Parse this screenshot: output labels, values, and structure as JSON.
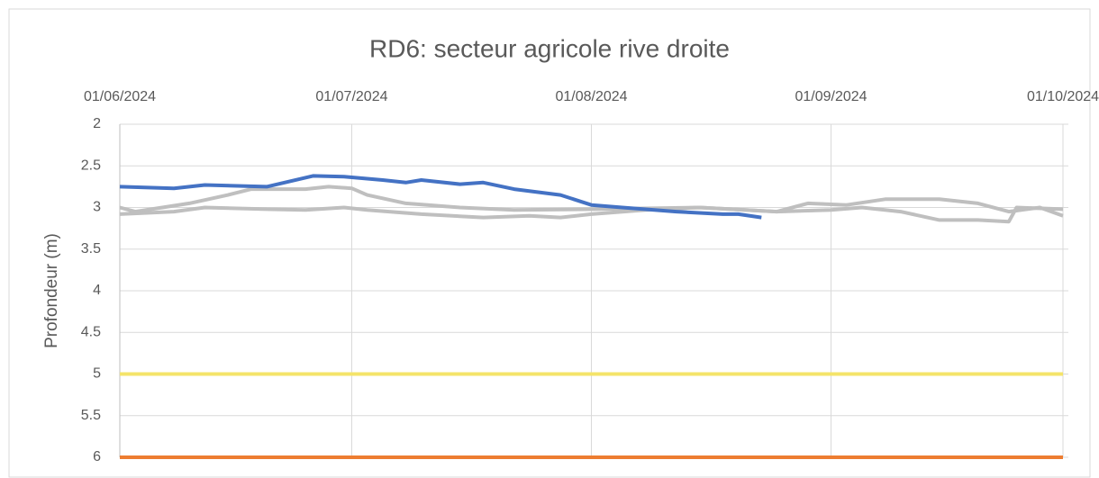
{
  "chart_data": {
    "type": "line",
    "title": "RD6: secteur agricole rive droite",
    "y_label": "Profondeur (m)",
    "ylim": [
      2,
      6
    ],
    "y_inverted": true,
    "yticks": [
      2,
      2.5,
      3,
      3.5,
      4,
      4.5,
      5,
      5.5,
      6
    ],
    "xlim": [
      "2024-06-01",
      "2024-10-01"
    ],
    "xticks": [
      {
        "value": "2024-06-01",
        "label": "01/06/2024"
      },
      {
        "value": "2024-07-01",
        "label": "01/07/2024"
      },
      {
        "value": "2024-08-01",
        "label": "01/08/2024"
      },
      {
        "value": "2024-09-01",
        "label": "01/09/2024"
      },
      {
        "value": "2024-10-01",
        "label": "01/10/2024"
      }
    ],
    "grid": true,
    "series": [
      {
        "color": "#bfbfbf",
        "x": [
          "2024-06-01",
          "2024-06-03",
          "2024-06-10",
          "2024-06-15",
          "2024-06-18",
          "2024-06-25",
          "2024-06-28",
          "2024-07-01",
          "2024-07-03",
          "2024-07-08",
          "2024-07-15",
          "2024-07-22",
          "2024-08-01",
          "2024-08-15",
          "2024-08-25",
          "2024-09-01",
          "2024-09-05",
          "2024-09-10",
          "2024-09-15",
          "2024-09-20",
          "2024-09-24",
          "2024-09-25",
          "2024-10-01"
        ],
        "values": [
          3.0,
          3.05,
          2.95,
          2.85,
          2.78,
          2.78,
          2.75,
          2.77,
          2.85,
          2.95,
          3.0,
          3.03,
          3.02,
          3.0,
          3.05,
          3.03,
          3.0,
          3.05,
          3.15,
          3.15,
          3.17,
          3.0,
          3.02
        ]
      },
      {
        "color": "#bfbfbf",
        "x": [
          "2024-06-01",
          "2024-06-08",
          "2024-06-12",
          "2024-06-20",
          "2024-06-25",
          "2024-06-30",
          "2024-07-03",
          "2024-07-10",
          "2024-07-18",
          "2024-07-24",
          "2024-07-28",
          "2024-08-01",
          "2024-08-08",
          "2024-08-15",
          "2024-08-25",
          "2024-08-29",
          "2024-09-03",
          "2024-09-08",
          "2024-09-15",
          "2024-09-20",
          "2024-09-24",
          "2024-09-28",
          "2024-10-01"
        ],
        "values": [
          3.08,
          3.05,
          3.0,
          3.02,
          3.03,
          3.0,
          3.03,
          3.08,
          3.12,
          3.1,
          3.12,
          3.08,
          3.03,
          3.0,
          3.05,
          2.95,
          2.97,
          2.9,
          2.9,
          2.95,
          3.05,
          3.0,
          3.1
        ]
      },
      {
        "color": "#4472c4",
        "x": [
          "2024-06-01",
          "2024-06-08",
          "2024-06-12",
          "2024-06-20",
          "2024-06-26",
          "2024-06-30",
          "2024-07-05",
          "2024-07-08",
          "2024-07-10",
          "2024-07-15",
          "2024-07-18",
          "2024-07-22",
          "2024-07-28",
          "2024-08-01",
          "2024-08-05",
          "2024-08-12",
          "2024-08-18",
          "2024-08-20",
          "2024-08-23"
        ],
        "values": [
          2.75,
          2.77,
          2.73,
          2.75,
          2.62,
          2.63,
          2.67,
          2.7,
          2.67,
          2.72,
          2.7,
          2.78,
          2.85,
          2.97,
          3.0,
          3.05,
          3.08,
          3.08,
          3.12
        ]
      },
      {
        "color": "#f4e46a",
        "x": [
          "2024-06-01",
          "2024-10-01"
        ],
        "values": [
          5,
          5
        ]
      },
      {
        "color": "#ed7d31",
        "x": [
          "2024-06-01",
          "2024-10-01"
        ],
        "values": [
          6,
          6
        ]
      }
    ]
  }
}
